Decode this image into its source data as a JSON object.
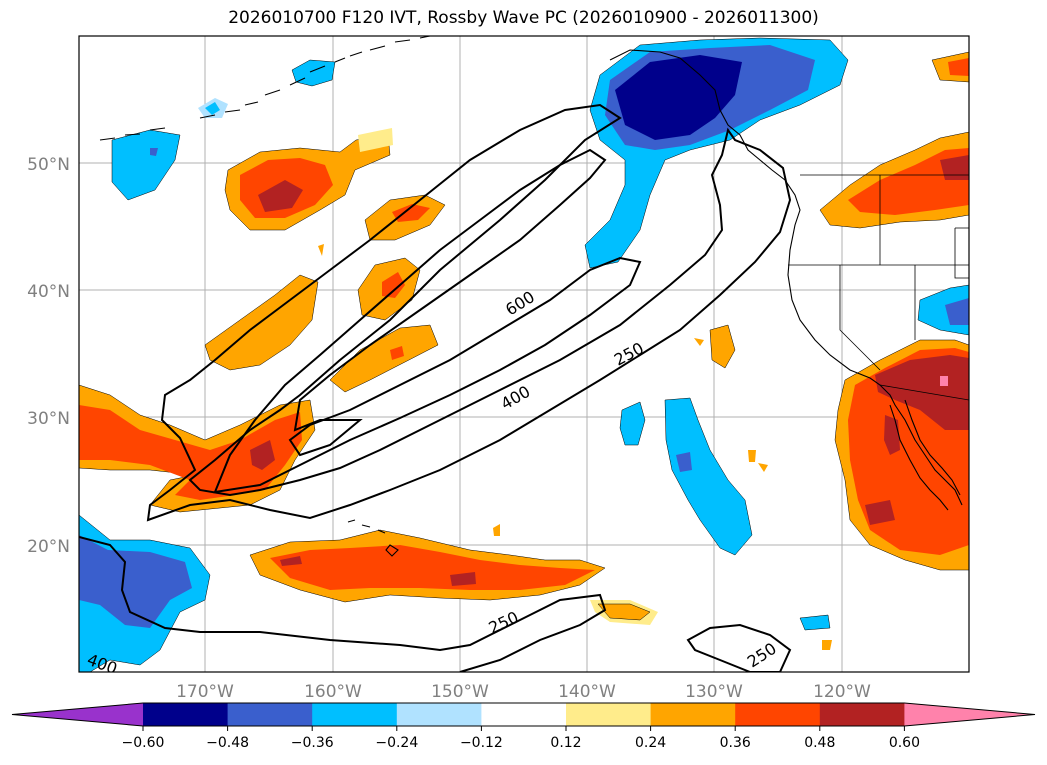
{
  "title": "2026010700 F120 IVT, Rossby Wave PC (2026010900 - 2026011300)",
  "latitude_labels": [
    "50°N",
    "40°N",
    "30°N",
    "20°N"
  ],
  "longitude_labels": [
    "170°W",
    "160°W",
    "150°W",
    "140°W",
    "130°W",
    "120°W"
  ],
  "contour_labels": {
    "c600": "600",
    "c400_upper": "400",
    "c400_left": "400",
    "c250_upper": "250",
    "c250_lower": "250",
    "c250_right": "250"
  },
  "colorbar": {
    "tick_labels": [
      "−0.60",
      "−0.48",
      "−0.36",
      "−0.24",
      "−0.12",
      "0.12",
      "0.24",
      "0.36",
      "0.48",
      "0.60"
    ],
    "colors": [
      "#9932cc",
      "#00008b",
      "#3a5fcd",
      "#00bfff",
      "#b0e2ff",
      "#ffffff",
      "#ffec8b",
      "#ffa500",
      "#ff4500",
      "#b22222",
      "#ff82ab"
    ]
  },
  "colors": {
    "dark_blue": "#00008b",
    "medium_blue": "#3a5fcd",
    "light_blue": "#00bfff",
    "pale_blue": "#b0e2ff",
    "pale_yellow": "#ffec8b",
    "orange": "#ffa500",
    "red_orange": "#ff4500",
    "dark_red": "#b22222",
    "pink": "#ff82ab"
  }
}
